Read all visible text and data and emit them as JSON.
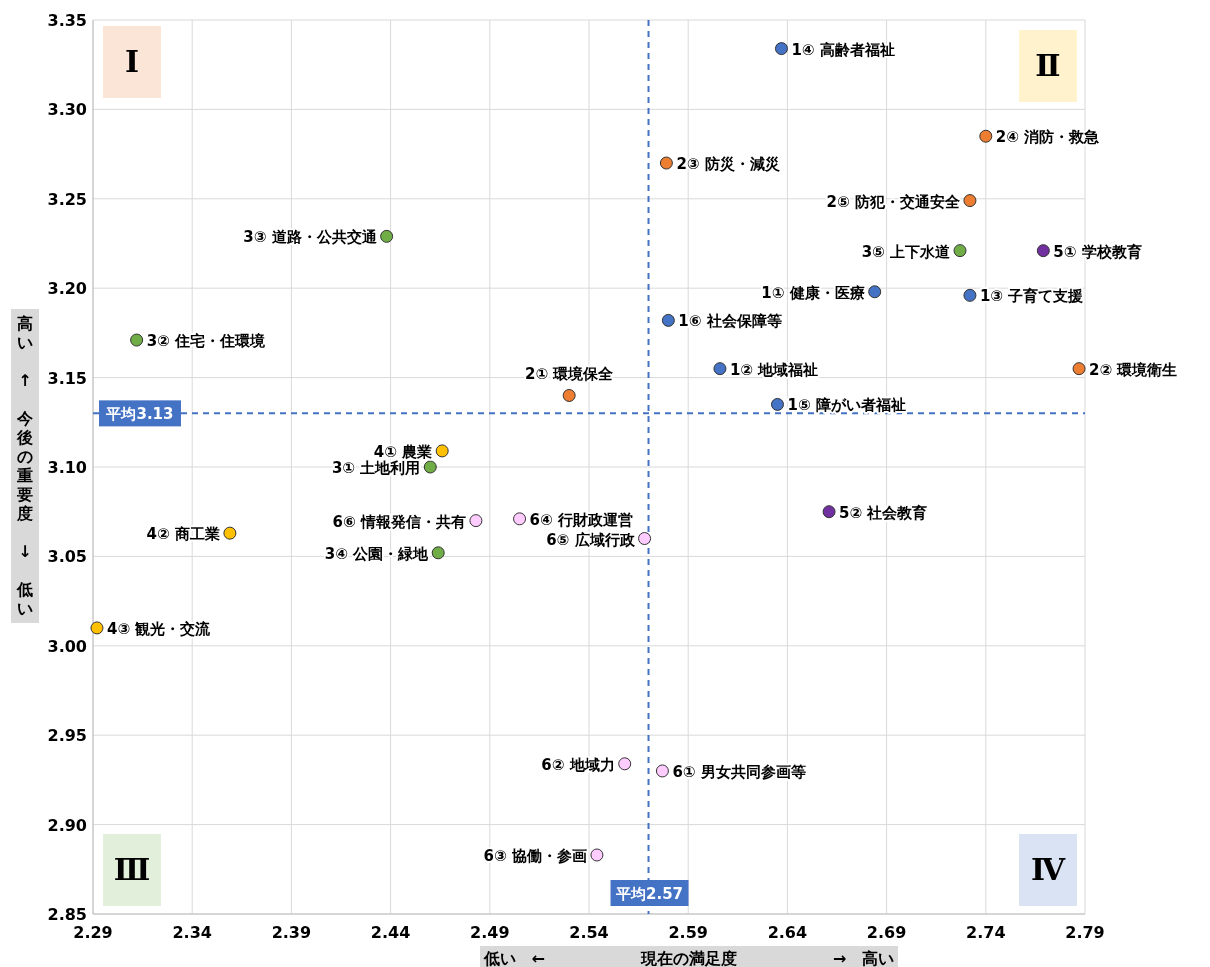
{
  "chart_data": {
    "type": "scatter",
    "xlabel": "低い　←　　　　　　現在の満足度　　　　　　→　高い",
    "ylabel": "高い ↑ 今後の重要度 ↓ 低い",
    "series": [
      {
        "color": "#4472c4",
        "x": [
          2.684,
          2.606,
          2.732,
          2.637,
          2.635,
          2.58
        ],
        "values": [
          3.198,
          3.155,
          3.196,
          3.334,
          3.135,
          3.182
        ]
      },
      {
        "color": "#ed7d31",
        "x": [
          2.53,
          2.787,
          2.579,
          2.74,
          2.732
        ],
        "values": [
          3.14,
          3.155,
          3.27,
          3.285,
          3.249
        ]
      },
      {
        "color": "#70ad47",
        "x": [
          2.46,
          2.312,
          2.438,
          2.464,
          2.727
        ],
        "values": [
          3.1,
          3.171,
          3.229,
          3.052,
          3.221
        ]
      },
      {
        "color": "#ffc000",
        "x": [
          2.466,
          2.359,
          2.292
        ],
        "values": [
          3.109,
          3.063,
          3.01
        ]
      },
      {
        "color": "#7030a0",
        "x": [
          2.769,
          2.661
        ],
        "values": [
          3.221,
          3.075
        ]
      },
      {
        "color": "#ffccff",
        "x": [
          2.577,
          2.558,
          2.544,
          2.505,
          2.568,
          2.483
        ],
        "values": [
          2.93,
          2.934,
          2.883,
          3.071,
          3.06,
          3.07
        ]
      }
    ],
    "xlim": [
      2.29,
      2.79
    ],
    "xticks": [
      2.29,
      2.34,
      2.39,
      2.44,
      2.49,
      2.54,
      2.59,
      2.64,
      2.69,
      2.74,
      2.79
    ],
    "ylim": [
      2.85,
      3.35
    ],
    "yticks": [
      {
        "value": 2.85,
        "label": "2.85"
      },
      {
        "value": 2.9,
        "label": "2.90"
      },
      {
        "value": 2.95,
        "label": "2.95"
      },
      {
        "value": 3.0,
        "label": "3.00"
      },
      {
        "value": 3.05,
        "label": "3.05"
      },
      {
        "value": 3.1,
        "label": "3.10"
      },
      {
        "value": 3.15,
        "label": "3.15"
      },
      {
        "value": 3.2,
        "label": "3.20"
      },
      {
        "value": 3.25,
        "label": "3.25"
      },
      {
        "value": 3.3,
        "label": "3.30"
      },
      {
        "value": 3.35,
        "label": "3.35"
      }
    ],
    "ref_lines": [
      {
        "axis": "x",
        "value": 2.57,
        "label": "平均2.57",
        "color": "#4472c4",
        "line_style": "dashed"
      },
      {
        "axis": "y",
        "value": 3.13,
        "label": "平均3.13",
        "color": "#4472c4",
        "line_style": "dashed"
      }
    ],
    "annotations": [
      "Ⅰ",
      "Ⅱ",
      "Ⅲ",
      "Ⅳ",
      {
        "text": "1① 健康・医療",
        "x": 2.684,
        "y": 3.198
      },
      {
        "text": "1② 地域福祉",
        "x": 2.606,
        "y": 3.155
      },
      {
        "text": "1③ 子育て支援",
        "x": 2.732,
        "y": 3.196
      },
      {
        "text": "1④ 高齢者福祉",
        "x": 2.637,
        "y": 3.334
      },
      {
        "text": "1⑤ 障がい者福祉",
        "x": 2.635,
        "y": 3.135
      },
      {
        "text": "1⑥ 社会保障等",
        "x": 2.58,
        "y": 3.182
      },
      {
        "text": "2① 環境保全",
        "x": 2.53,
        "y": 3.14
      },
      {
        "text": "2② 環境衛生",
        "x": 2.787,
        "y": 3.155
      },
      {
        "text": "2③ 防災・減災",
        "x": 2.579,
        "y": 3.27
      },
      {
        "text": "2④ 消防・救急",
        "x": 2.74,
        "y": 3.285
      },
      {
        "text": "2⑤ 防犯・交通安全",
        "x": 2.732,
        "y": 3.249
      },
      {
        "text": "3① 土地利用",
        "x": 2.46,
        "y": 3.1
      },
      {
        "text": "3② 住宅・住環境",
        "x": 2.312,
        "y": 3.171
      },
      {
        "text": "3③ 道路・公共交通",
        "x": 2.438,
        "y": 3.229
      },
      {
        "text": "3④ 公園・緑地",
        "x": 2.464,
        "y": 3.052
      },
      {
        "text": "3⑤ 上下水道",
        "x": 2.727,
        "y": 3.221
      },
      {
        "text": "4① 農業",
        "x": 2.466,
        "y": 3.109
      },
      {
        "text": "4② 商工業",
        "x": 2.359,
        "y": 3.063
      },
      {
        "text": "4③ 観光・交流",
        "x": 2.292,
        "y": 3.01
      },
      {
        "text": "5① 学校教育",
        "x": 2.769,
        "y": 3.221
      },
      {
        "text": "5② 社会教育",
        "x": 2.661,
        "y": 3.075
      },
      {
        "text": "6① 男女共同参画等",
        "x": 2.577,
        "y": 2.93
      },
      {
        "text": "6② 地域力",
        "x": 2.558,
        "y": 2.934
      },
      {
        "text": "6③ 協働・参画",
        "x": 2.544,
        "y": 2.883
      },
      {
        "text": "6④ 行財政運営",
        "x": 2.505,
        "y": 3.071
      },
      {
        "text": "6⑤ 広域行政",
        "x": 2.568,
        "y": 3.06
      },
      {
        "text": "6⑥ 情報発信・共有",
        "x": 2.483,
        "y": 3.07
      }
    ],
    "grid": true,
    "marker": "circle"
  }
}
